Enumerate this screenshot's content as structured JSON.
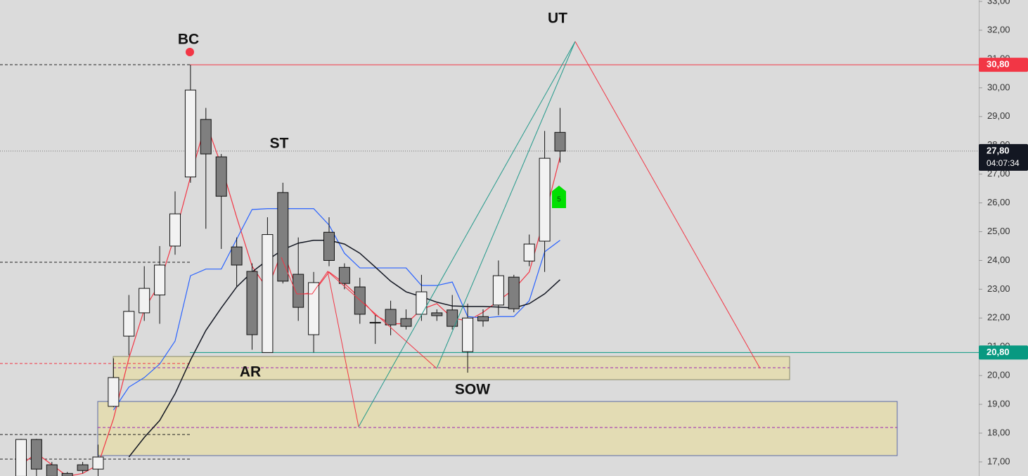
{
  "chart_data": {
    "type": "candlestick",
    "ylim": [
      16.51,
      33.05
    ],
    "yticks": [
      {
        "value": 17,
        "label": "17,00"
      },
      {
        "value": 18,
        "label": "18,00"
      },
      {
        "value": 19,
        "label": "19,00"
      },
      {
        "value": 20,
        "label": "20,00"
      },
      {
        "value": 21,
        "label": "21,00"
      },
      {
        "value": 22,
        "label": "22,00"
      },
      {
        "value": 23,
        "label": "23,00"
      },
      {
        "value": 24,
        "label": "24,00"
      },
      {
        "value": 25,
        "label": "25,00"
      },
      {
        "value": 26,
        "label": "26,00"
      },
      {
        "value": 27,
        "label": "27,00"
      },
      {
        "value": 28,
        "label": "28,00"
      },
      {
        "value": 29,
        "label": "29,00"
      },
      {
        "value": 30,
        "label": "30,00"
      },
      {
        "value": 31,
        "label": "31,00"
      },
      {
        "value": 32,
        "label": "32,00"
      },
      {
        "value": 33,
        "label": "33,00"
      }
    ],
    "up_color": "#f2f2f2",
    "down_color": "#7f7f7f",
    "open": [
      16.5,
      17.78,
      16.9,
      16.6,
      16.9,
      16.75,
      18.93,
      21.37,
      22.18,
      22.8,
      24.5,
      26.9,
      28.9,
      27.6,
      24.47,
      23.62,
      20.8,
      26.36,
      23.52,
      21.42,
      24.98,
      23.76,
      23.08,
      21.85,
      22.3,
      21.98,
      22.13,
      22.18,
      22.28,
      20.83,
      22.05,
      22.45,
      23.42,
      23.98,
      24.67,
      28.45
    ],
    "high": [
      17.8,
      17.8,
      17.0,
      16.65,
      17.0,
      17.6,
      20.6,
      22.8,
      23.8,
      24.5,
      26.4,
      30.8,
      29.3,
      27.7,
      24.8,
      23.9,
      25.5,
      26.7,
      24.8,
      23.6,
      25.5,
      23.9,
      23.4,
      22.1,
      22.6,
      22.3,
      23.5,
      22.3,
      22.8,
      22.5,
      22.3,
      24.0,
      23.5,
      24.9,
      28.5,
      29.3
    ],
    "low": [
      16.4,
      16.5,
      16.4,
      16.4,
      16.6,
      16.5,
      18.9,
      20.7,
      21.9,
      21.8,
      24.2,
      26.7,
      25.1,
      24.4,
      23.1,
      20.9,
      20.8,
      23.2,
      21.9,
      20.8,
      23.8,
      23.0,
      21.8,
      21.1,
      21.4,
      21.6,
      21.9,
      21.9,
      21.6,
      20.1,
      21.7,
      22.1,
      22.2,
      23.8,
      23.6,
      27.4
    ],
    "close": [
      17.78,
      16.75,
      16.5,
      16.5,
      16.7,
      17.17,
      19.93,
      22.23,
      23.03,
      23.84,
      25.62,
      29.92,
      27.7,
      26.23,
      23.84,
      21.42,
      24.9,
      23.28,
      22.37,
      23.23,
      24.0,
      23.2,
      22.13,
      21.85,
      21.76,
      21.71,
      22.91,
      22.08,
      21.71,
      22.0,
      21.9,
      23.47,
      22.32,
      24.57,
      27.55,
      27.8
    ],
    "lines": [
      {
        "color": "#f23645",
        "values": [
          16.9,
          17.3,
          16.9,
          16.5,
          16.6,
          16.9,
          18.5,
          20.6,
          22.3,
          23.2,
          24.9,
          26.9,
          28.8,
          27.3,
          25.5,
          23.8,
          23.0,
          24.4,
          22.8,
          22.9,
          23.6,
          23.2,
          22.7,
          22.1,
          21.8,
          21.8,
          22.3,
          22.5,
          22.0,
          21.9,
          22.2,
          22.6,
          23.0,
          23.6,
          25.5,
          27.6
        ]
      },
      {
        "color": "#2962ff",
        "values": [
          null,
          null,
          null,
          null,
          null,
          null,
          18.8,
          19.6,
          19.93,
          20.4,
          21.2,
          23.47,
          23.7,
          23.7,
          24.74,
          25.77,
          25.8,
          25.8,
          25.8,
          25.8,
          25.23,
          24.25,
          23.74,
          23.74,
          23.74,
          23.74,
          23.13,
          23.13,
          23.25,
          22.05,
          22.0,
          22.05,
          22.05,
          22.6,
          24.3,
          24.7
        ]
      },
      {
        "color": "#131722",
        "values": [
          null,
          null,
          null,
          null,
          null,
          null,
          null,
          17.17,
          17.85,
          18.44,
          19.37,
          20.54,
          21.57,
          22.35,
          23.08,
          23.6,
          24.01,
          24.38,
          24.6,
          24.7,
          24.7,
          24.57,
          24.25,
          23.77,
          23.28,
          22.91,
          22.74,
          22.55,
          22.42,
          22.4,
          22.4,
          22.38,
          22.35,
          22.5,
          22.84,
          23.33
        ]
      }
    ],
    "price_levels": [
      {
        "value": 30.8,
        "label": "30,80",
        "color": "#f23645",
        "style": "solid"
      },
      {
        "value": 27.8,
        "label": "27,80",
        "countdown": "04:07:34",
        "color": "#131722",
        "style": "dotted"
      },
      {
        "value": 20.8,
        "label": "20,80",
        "color": "#089981",
        "style": "solid"
      }
    ],
    "annotations": [
      "BC",
      "ST",
      "AR",
      "SOW",
      "UT"
    ],
    "signal_label": "5"
  }
}
